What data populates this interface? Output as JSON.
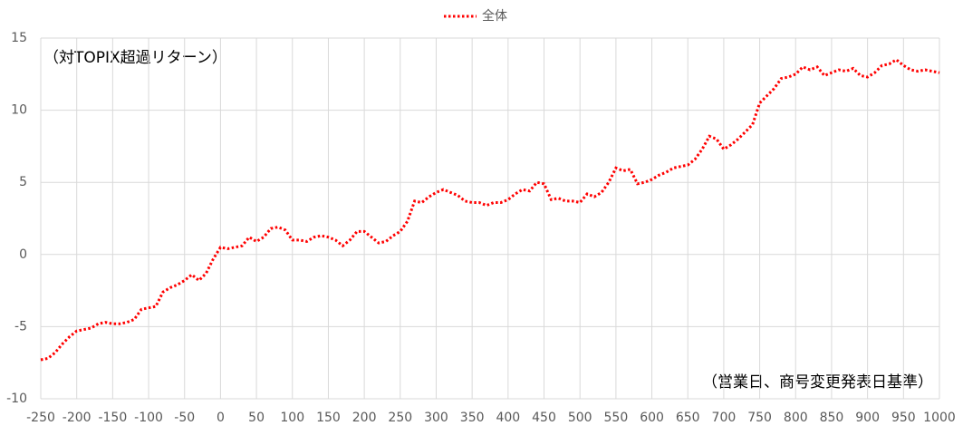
{
  "chart_data": {
    "type": "line",
    "annotations": [
      "（対TOPIX超過リターン）",
      "（営業日、商号変更発表日基準）"
    ],
    "x": [
      -250,
      -240,
      -230,
      -220,
      -210,
      -200,
      -190,
      -180,
      -170,
      -160,
      -150,
      -140,
      -130,
      -120,
      -110,
      -100,
      -90,
      -80,
      -70,
      -60,
      -50,
      -40,
      -30,
      -20,
      -10,
      0,
      10,
      20,
      30,
      40,
      50,
      60,
      70,
      80,
      90,
      100,
      110,
      120,
      130,
      140,
      150,
      160,
      170,
      180,
      190,
      200,
      210,
      220,
      230,
      240,
      250,
      260,
      270,
      280,
      290,
      300,
      310,
      320,
      330,
      340,
      350,
      360,
      370,
      380,
      390,
      400,
      410,
      420,
      430,
      440,
      450,
      460,
      470,
      480,
      490,
      500,
      510,
      520,
      530,
      540,
      550,
      560,
      570,
      580,
      590,
      600,
      610,
      620,
      630,
      640,
      650,
      660,
      670,
      680,
      690,
      700,
      710,
      720,
      730,
      740,
      750,
      760,
      770,
      780,
      790,
      800,
      810,
      820,
      830,
      840,
      850,
      860,
      870,
      880,
      890,
      900,
      910,
      920,
      930,
      940,
      950,
      960,
      970,
      980,
      990,
      1000
    ],
    "series": [
      {
        "name": "全体",
        "color": "#ff0000",
        "values": [
          -7.3,
          -7.2,
          -6.8,
          -6.2,
          -5.7,
          -5.3,
          -5.2,
          -5.1,
          -4.8,
          -4.7,
          -4.8,
          -4.8,
          -4.7,
          -4.5,
          -3.8,
          -3.7,
          -3.6,
          -2.6,
          -2.3,
          -2.1,
          -1.8,
          -1.4,
          -1.8,
          -1.3,
          -0.3,
          0.5,
          0.4,
          0.5,
          0.6,
          1.2,
          0.9,
          1.2,
          1.8,
          1.9,
          1.7,
          1.0,
          1.0,
          0.9,
          1.2,
          1.3,
          1.2,
          1.0,
          0.6,
          1.0,
          1.6,
          1.6,
          1.2,
          0.8,
          0.9,
          1.3,
          1.6,
          2.3,
          3.7,
          3.6,
          4.0,
          4.3,
          4.5,
          4.3,
          4.1,
          3.7,
          3.6,
          3.6,
          3.4,
          3.6,
          3.6,
          3.8,
          4.2,
          4.5,
          4.4,
          5.0,
          4.9,
          3.8,
          3.9,
          3.7,
          3.7,
          3.6,
          4.2,
          4.0,
          4.3,
          5.0,
          6.0,
          5.8,
          5.9,
          4.9,
          5.0,
          5.2,
          5.5,
          5.7,
          6.0,
          6.1,
          6.2,
          6.6,
          7.3,
          8.2,
          8.0,
          7.3,
          7.6,
          8.0,
          8.5,
          9.0,
          10.5,
          11.0,
          11.5,
          12.2,
          12.3,
          12.5,
          13.0,
          12.8,
          13.0,
          12.4,
          12.6,
          12.8,
          12.7,
          12.9,
          12.4,
          12.3,
          12.6,
          13.1,
          13.2,
          13.5,
          13.1,
          12.8,
          12.7,
          12.8,
          12.7,
          12.6
        ]
      }
    ],
    "xlim": [
      -250,
      1000
    ],
    "xticks": [
      -250,
      -200,
      -150,
      -100,
      -50,
      0,
      50,
      100,
      150,
      200,
      250,
      300,
      350,
      400,
      450,
      500,
      550,
      600,
      650,
      700,
      750,
      800,
      850,
      900,
      950,
      1000
    ],
    "ylim": [
      -10,
      15
    ],
    "yticks": [
      -10,
      -5,
      0,
      5,
      10,
      15
    ],
    "grid": true,
    "legend": "top"
  }
}
